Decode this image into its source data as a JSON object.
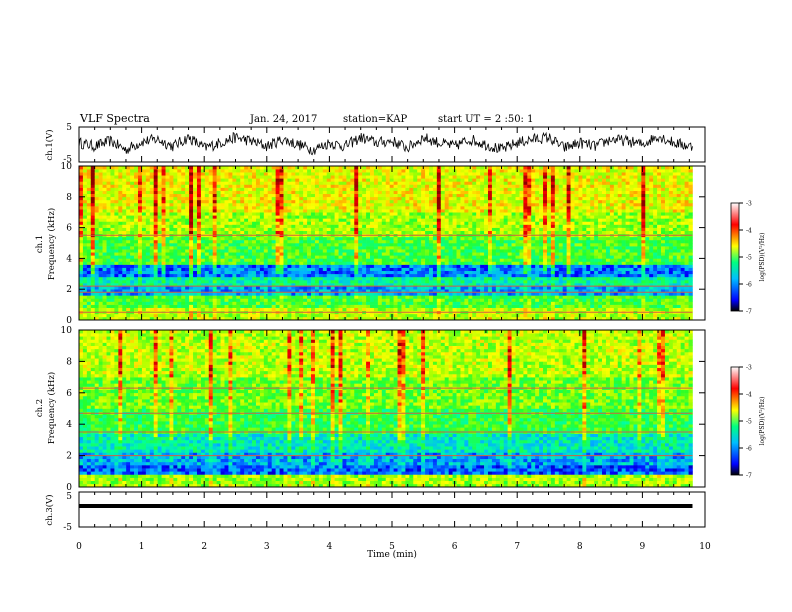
{
  "header": {
    "title": "VLF Spectra",
    "date": "Jan. 24, 2017",
    "station": "station=KAP",
    "start": "start UT =  2 :50: 1"
  },
  "chart_data": [
    {
      "id": "ch1-waveform",
      "type": "line",
      "ylabel": "ch.1(V)",
      "ylim": [
        -5,
        5
      ],
      "yticks": [
        "5",
        "-5"
      ],
      "xlim": [
        0,
        10
      ],
      "series_description": "noisy waveform oscillating roughly between -2 and 3 V",
      "x": [
        0.0,
        0.25,
        0.5,
        0.75,
        1.0,
        1.25,
        1.5,
        1.75,
        2.0,
        2.25,
        2.5,
        2.75,
        3.0,
        3.25,
        3.5,
        3.75,
        4.0,
        4.25,
        4.5,
        4.75,
        5.0,
        5.25,
        5.5,
        5.75,
        6.0,
        6.25,
        6.5,
        6.75,
        7.0,
        7.25,
        7.5,
        7.75,
        8.0,
        8.25,
        8.5,
        8.75,
        9.0,
        9.25,
        9.5,
        9.75
      ],
      "values": [
        0.5,
        -0.5,
        1.0,
        -1.5,
        0.8,
        1.5,
        -0.5,
        2.0,
        -1.0,
        0.5,
        2.0,
        1.0,
        -0.5,
        1.5,
        0.0,
        -1.5,
        0.5,
        -0.5,
        2.0,
        0.5,
        1.0,
        -1.0,
        2.0,
        0.5,
        -0.5,
        1.5,
        0.0,
        -1.5,
        0.5,
        1.5,
        2.0,
        -1.0,
        0.5,
        -0.5,
        1.5,
        1.0,
        0.0,
        2.5,
        0.5,
        -0.5
      ]
    },
    {
      "id": "ch1-spectrogram",
      "type": "heatmap",
      "ylabel": "ch.1\nFrequency (kHz)",
      "ylim": [
        0,
        10
      ],
      "yticks": [
        "0",
        "2",
        "4",
        "6",
        "8",
        "10"
      ],
      "xlim": [
        0,
        10
      ],
      "colorbar": {
        "label": "log(PSD)(V²/Hz)",
        "range": [
          -7,
          -3
        ],
        "ticks": [
          "-3",
          "-4",
          "-5",
          "-6",
          "-7"
        ]
      },
      "bands_kHz_log_psd": [
        {
          "f": [
            0.0,
            0.8
          ],
          "v": -4.5
        },
        {
          "f": [
            0.8,
            1.6
          ],
          "v": -5.0
        },
        {
          "f": [
            1.6,
            2.2
          ],
          "v": -6.0
        },
        {
          "f": [
            2.2,
            2.8
          ],
          "v": -5.5
        },
        {
          "f": [
            2.8,
            3.6
          ],
          "v": -6.2
        },
        {
          "f": [
            3.6,
            5.5
          ],
          "v": -5.0
        },
        {
          "f": [
            5.5,
            7.0
          ],
          "v": -4.6
        },
        {
          "f": [
            7.0,
            10.0
          ],
          "v": -4.3
        }
      ],
      "horizontal_lines_kHz": [
        5.5,
        2.2,
        1.8,
        0.5
      ]
    },
    {
      "id": "ch2-spectrogram",
      "type": "heatmap",
      "ylabel": "ch.2\nFrequency (kHz)",
      "ylim": [
        0,
        10
      ],
      "yticks": [
        "0",
        "2",
        "4",
        "6",
        "8",
        "10"
      ],
      "xlim": [
        0,
        10
      ],
      "colorbar": {
        "label": "log(PSD)(V²/Hz)",
        "range": [
          -7,
          -3
        ],
        "ticks": [
          "-3",
          "-4",
          "-5",
          "-6",
          "-7"
        ]
      },
      "bands_kHz_log_psd": [
        {
          "f": [
            0.0,
            0.8
          ],
          "v": -4.6
        },
        {
          "f": [
            0.8,
            1.5
          ],
          "v": -6.3
        },
        {
          "f": [
            1.5,
            2.3
          ],
          "v": -6.0
        },
        {
          "f": [
            2.3,
            3.5
          ],
          "v": -5.6
        },
        {
          "f": [
            3.5,
            5.0
          ],
          "v": -5.1
        },
        {
          "f": [
            5.0,
            7.0
          ],
          "v": -4.8
        },
        {
          "f": [
            7.0,
            10.0
          ],
          "v": -4.5
        }
      ],
      "horizontal_lines_kHz": [
        6.3,
        4.7,
        3.5,
        2.0
      ]
    },
    {
      "id": "ch3-waveform",
      "type": "line",
      "ylabel": "ch.3(V)",
      "ylim": [
        -5,
        5
      ],
      "yticks": [
        "5",
        "-5"
      ],
      "xlim": [
        0,
        10
      ],
      "x": [
        0,
        9.8
      ],
      "values": [
        1,
        1
      ]
    }
  ],
  "xaxis": {
    "label": "Time (min)",
    "ticks": [
      "0",
      "1",
      "2",
      "3",
      "4",
      "5",
      "6",
      "7",
      "8",
      "9",
      "10"
    ]
  },
  "colors": {
    "colormap": [
      "#000080",
      "#0000ff",
      "#00bfff",
      "#00ff80",
      "#40ff00",
      "#c8ff00",
      "#ffff00",
      "#ff8000",
      "#ff0000",
      "#8b0000"
    ]
  }
}
